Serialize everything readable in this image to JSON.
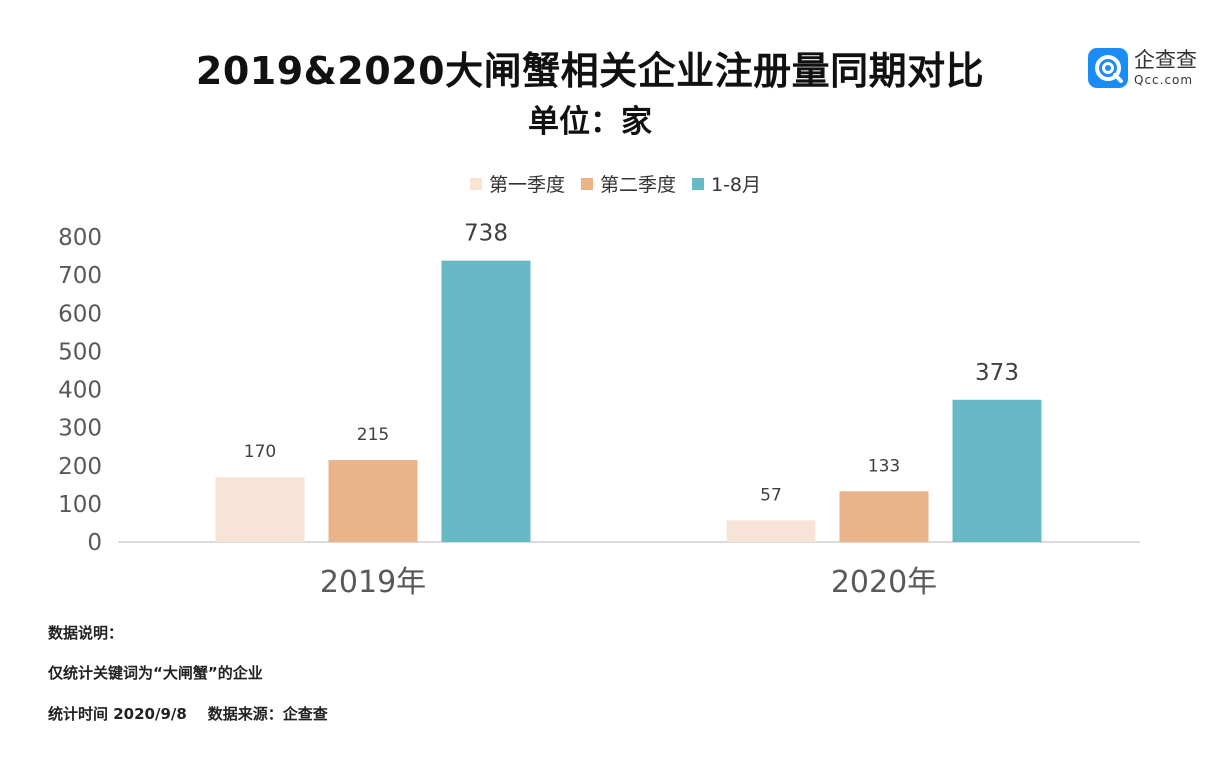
{
  "title": "2019&2020大闸蟹相关企业注册量同期对比",
  "subtitle": "单位：家",
  "logo": {
    "main_text": "企查查",
    "sub_text": "Qcc.com",
    "color": "#1a8cf5"
  },
  "notes": {
    "heading": "数据说明：",
    "line1": "仅统计关键词为“大闸蟹”的企业",
    "line2": "统计时间 2020/9/8    数据来源：企查查"
  },
  "chart_data": {
    "type": "bar",
    "categories": [
      "2019年",
      "2020年"
    ],
    "series": [
      {
        "name": "第一季度",
        "values": [
          170,
          57
        ],
        "color": "#f7e4d7"
      },
      {
        "name": "第二季度",
        "values": [
          215,
          133
        ],
        "color": "#e9b48a"
      },
      {
        "name": "1-8月",
        "values": [
          738,
          373
        ],
        "color": "#66b9c5"
      }
    ],
    "yticks": [
      0,
      100,
      200,
      300,
      400,
      500,
      600,
      700,
      800
    ],
    "ylim": [
      0,
      800
    ],
    "legend_position": "top",
    "grid": false,
    "data_labels": true
  }
}
